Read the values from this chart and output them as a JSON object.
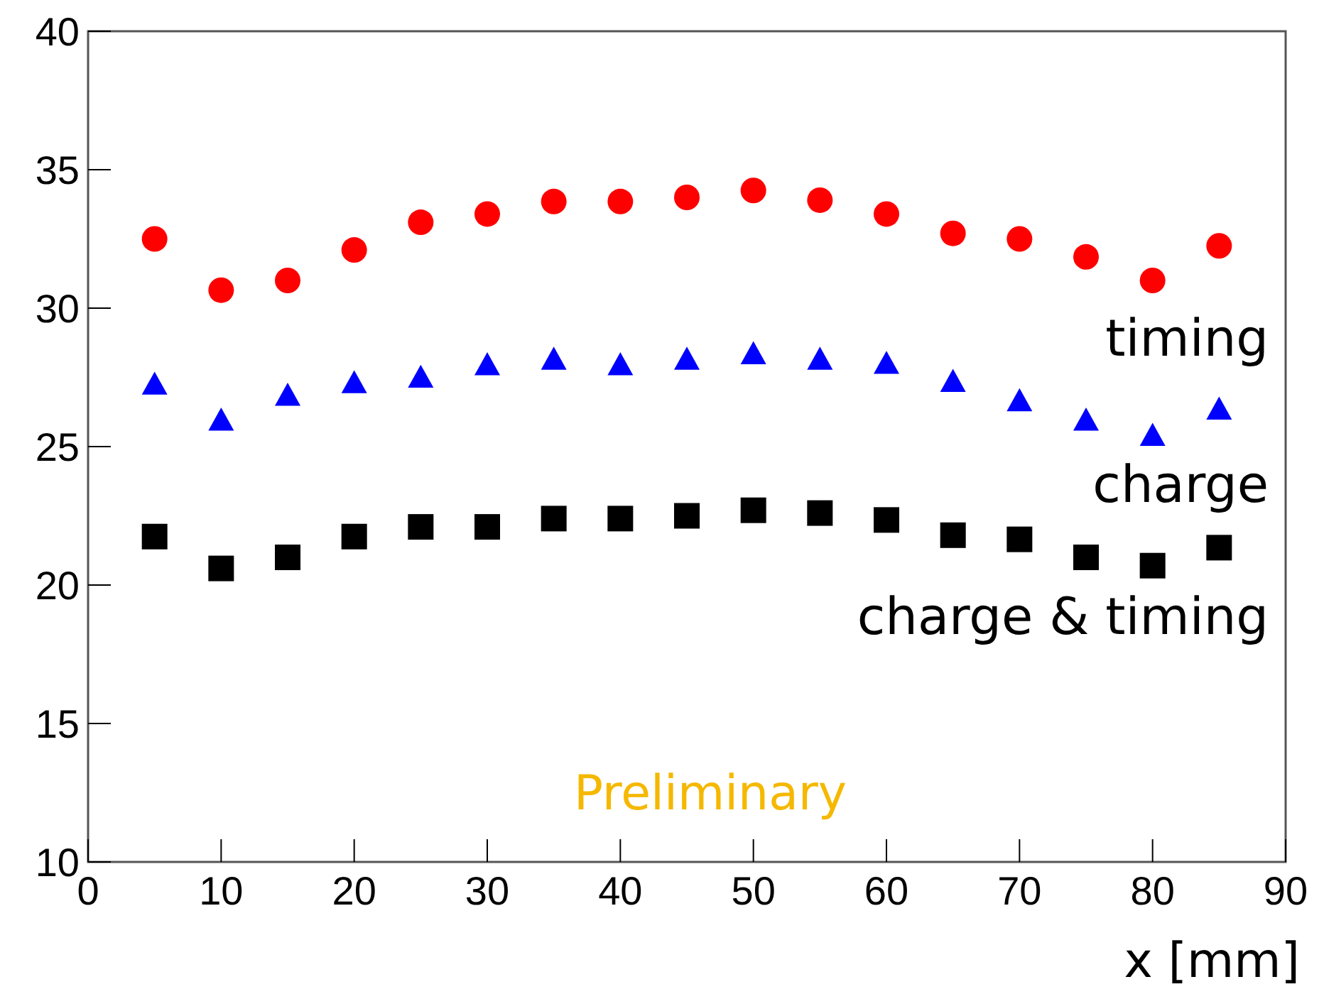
{
  "chart_data": {
    "type": "scatter",
    "xlabel": "x [mm]",
    "annotations": [
      "Preliminary"
    ],
    "x": [
      5,
      10,
      15,
      20,
      25,
      30,
      35,
      40,
      45,
      50,
      55,
      60,
      65,
      70,
      75,
      80,
      85
    ],
    "xlim": [
      0,
      90
    ],
    "xticks": [
      0,
      10,
      20,
      30,
      40,
      50,
      60,
      70,
      80,
      90
    ],
    "ylim": [
      10,
      40
    ],
    "yticks": [
      10,
      15,
      20,
      25,
      30,
      35,
      40
    ],
    "grid": false,
    "series": [
      {
        "name": "timing",
        "color": "#ff0000",
        "marker": "circle",
        "values": [
          32.5,
          30.65,
          31.0,
          32.1,
          33.1,
          33.4,
          33.85,
          33.85,
          34.0,
          34.25,
          33.9,
          33.4,
          32.7,
          32.5,
          31.85,
          31.0,
          32.25
        ]
      },
      {
        "name": "charge",
        "color": "#0000ff",
        "marker": "triangle",
        "values": [
          27.2,
          25.9,
          26.8,
          27.25,
          27.45,
          27.9,
          28.1,
          27.9,
          28.1,
          28.3,
          28.1,
          27.95,
          27.3,
          26.6,
          25.9,
          25.35,
          26.3
        ]
      },
      {
        "name": "charge & timing",
        "color": "#000000",
        "marker": "square",
        "values": [
          21.75,
          20.6,
          21.0,
          21.75,
          22.1,
          22.1,
          22.4,
          22.4,
          22.5,
          22.7,
          22.6,
          22.35,
          21.8,
          21.65,
          21.0,
          20.7,
          21.35
        ]
      }
    ]
  }
}
